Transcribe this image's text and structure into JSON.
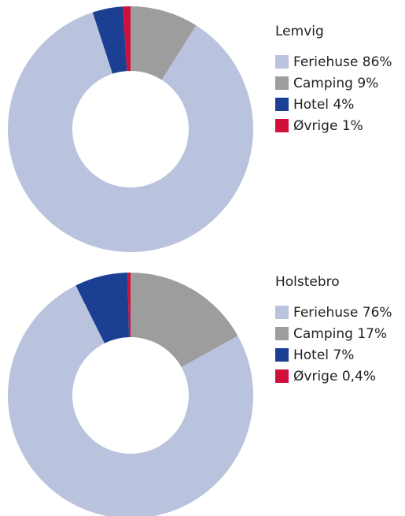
{
  "chart_data": [
    {
      "type": "donut",
      "title": "Lemvig",
      "categories": [
        "Feriehuse",
        "Camping",
        "Hotel",
        "Øvrige"
      ],
      "values": [
        86,
        9,
        4,
        1
      ],
      "value_labels": [
        "86%",
        "9%",
        "4%",
        "1%"
      ],
      "colors": [
        "#b9c3de",
        "#9d9d9d",
        "#1b3f92",
        "#d0103a"
      ]
    },
    {
      "type": "donut",
      "title": "Holstebro",
      "categories": [
        "Feriehuse",
        "Camping",
        "Hotel",
        "Øvrige"
      ],
      "values": [
        76,
        17,
        7,
        0.4
      ],
      "value_labels": [
        "76%",
        "17%",
        "7%",
        "0,4%"
      ],
      "colors": [
        "#b9c3de",
        "#9d9d9d",
        "#1b3f92",
        "#d0103a"
      ]
    }
  ]
}
